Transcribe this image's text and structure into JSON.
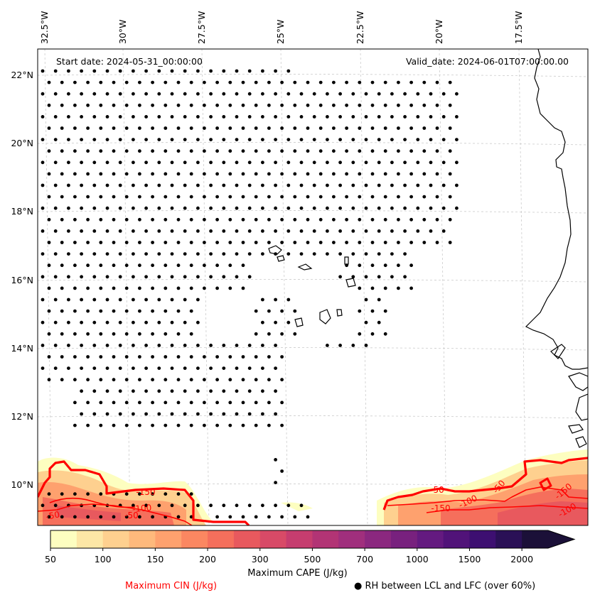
{
  "header": {
    "start_date": "Start date: 2024-05-31_00:00:00",
    "valid_date": "Valid_date: 2024-06-01T07:00:00.00"
  },
  "axes": {
    "lon_labels": [
      "32.5°W",
      "30°W",
      "27.5°W",
      "25°W",
      "22.5°W",
      "20°W",
      "17.5°W"
    ],
    "lat_labels": [
      "22°N",
      "20°N",
      "18°N",
      "16°N",
      "14°N",
      "12°N",
      "10°N"
    ]
  },
  "colorbar": {
    "title": "Maximum CAPE (J/kg)",
    "tick_labels": [
      "50",
      "100",
      "150",
      "200",
      "300",
      "500",
      "700",
      "1000",
      "1500",
      "2000"
    ],
    "colors": [
      "#fdfec0",
      "#fde7a6",
      "#fed08f",
      "#feb97c",
      "#fea16e",
      "#fb8761",
      "#f56f5c",
      "#e8595e",
      "#d84a67",
      "#c63d6f",
      "#b23475",
      "#a02f7d",
      "#8b287f",
      "#78217e",
      "#641a80",
      "#511379",
      "#3d0f71",
      "#2a1056",
      "#1b1038"
    ],
    "extend": "max"
  },
  "legend": {
    "cin": "Maximum CIN (J/kg)",
    "rh_symbol": "●",
    "rh": "RH between LCL and LFC (over 60%)"
  },
  "contour_labels": [
    "-50",
    "-100",
    "-150",
    "-50",
    "-100",
    "-150",
    "-50",
    "-150",
    "-100",
    "-50"
  ],
  "colors": {
    "cin_contour": "#ff0000",
    "coast": "#000000",
    "grid": "#cccccc"
  }
}
